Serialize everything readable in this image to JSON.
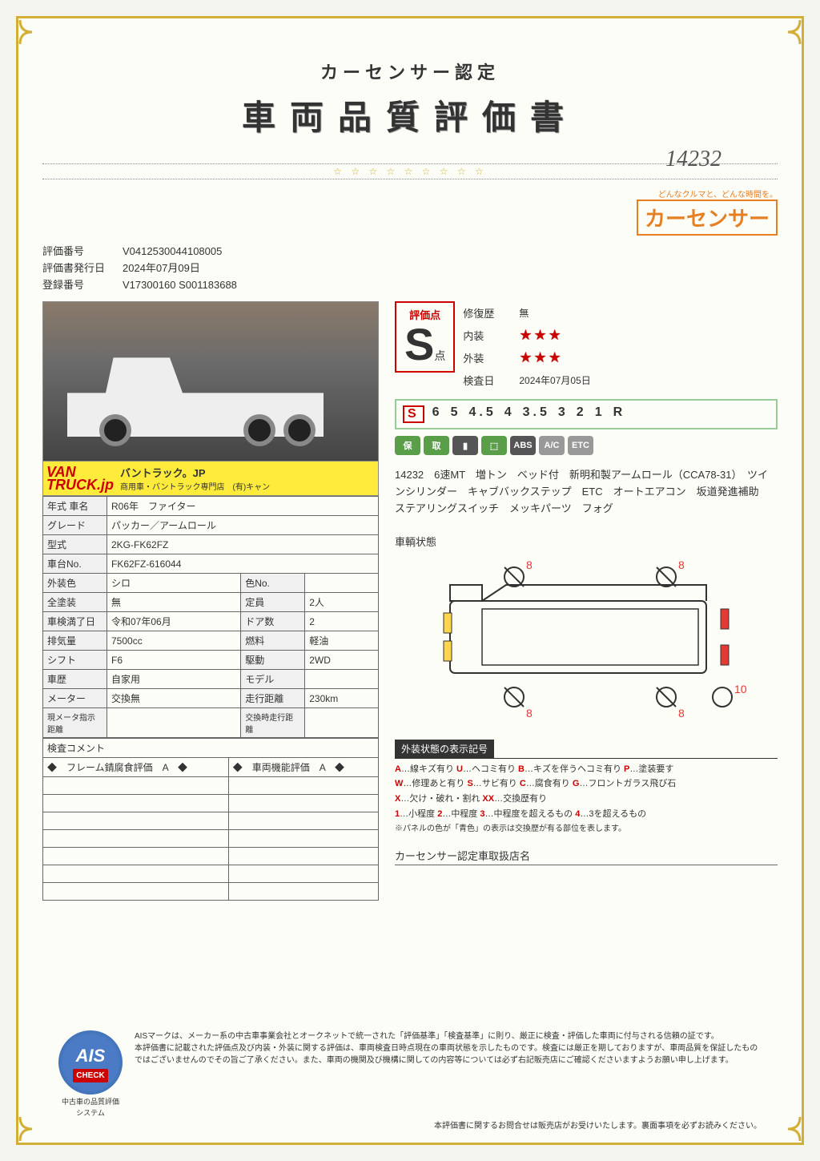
{
  "header": {
    "subtitle": "カーセンサー認定",
    "title": "車両品質評価書",
    "handwritten": "14232"
  },
  "brand": {
    "tagline": "どんなクルマと、どんな時間を。",
    "name": "カーセンサー"
  },
  "meta": {
    "eval_no_label": "評価番号",
    "eval_no": "V0412530044108005",
    "issue_date_label": "評価書発行日",
    "issue_date": "2024年07月09日",
    "reg_no_label": "登録番号",
    "reg_no": "V17300160 S001183688"
  },
  "banner": {
    "logo1": "VAN",
    "logo2": "TRUCK.jp",
    "text": "バントラック。JP",
    "sub": "商用車・バントラック専門店　(有)キャン"
  },
  "spec": {
    "year_label": "年式 車名",
    "year": "R06年　ファイター",
    "grade_label": "グレード",
    "grade": "パッカー／アームロール",
    "model_label": "型式",
    "model": "2KG-FK62FZ",
    "chassis_label": "車台No.",
    "chassis": "FK62FZ-616044",
    "ext_color_label": "外装色",
    "ext_color": "シロ",
    "color_no_label": "色No.",
    "color_no": "",
    "repaint_label": "全塗装",
    "repaint": "無",
    "capacity_label": "定員",
    "capacity": "2人",
    "shaken_label": "車検満了日",
    "shaken": "令和07年06月",
    "doors_label": "ドア数",
    "doors": "2",
    "disp_label": "排気量",
    "disp": "7500cc",
    "fuel_label": "燃料",
    "fuel": "軽油",
    "shift_label": "シフト",
    "shift": "F6",
    "drive_label": "駆動",
    "drive": "2WD",
    "history_label": "車歴",
    "history": "自家用",
    "modelyr_label": "モデル",
    "modelyr": "",
    "meter_label": "メーター",
    "meter": "交換無",
    "mileage_label": "走行距離",
    "mileage": "230km",
    "cur_meter_label": "現メータ指示距離",
    "cur_meter": "",
    "swap_meter_label": "交換時走行距離",
    "swap_meter": ""
  },
  "comment": {
    "title": "検査コメント",
    "frame": "◆　フレーム錆腐食評価　A　◆",
    "func": "◆　車両機能評価　A　◆"
  },
  "score": {
    "label": "評価点",
    "grade": "S",
    "unit": "点",
    "repair_label": "修復歴",
    "repair": "無",
    "interior_label": "内装",
    "interior_stars": "★★★",
    "exterior_label": "外装",
    "exterior_stars": "★★★",
    "inspect_label": "検査日",
    "inspect_date": "2024年07月05日"
  },
  "scale": [
    "S",
    "6",
    "5",
    "4.5",
    "4",
    "3.5",
    "3",
    "2",
    "1",
    "R"
  ],
  "scale_selected": "S",
  "badges": [
    "保",
    "取",
    "▮",
    "⬚",
    "ABS",
    "A/C",
    "ETC"
  ],
  "notes": "14232　6速MT　増トン　ベッド付　新明和製アームロール（CCA78-31）　ツインシリンダー　キャブバックステップ　ETC　オートエアコン　坂道発進補助　ステアリングスイッチ　メッキパーツ　フォグ",
  "diagram": {
    "title": "車輌状態",
    "marks": {
      "tl": "8",
      "tr": "8",
      "bl": "8",
      "br": "8",
      "r": "10"
    },
    "colors": {
      "outline": "#333",
      "yellow": "#ffd54f",
      "red": "#e53935",
      "marktext": "#e53935"
    }
  },
  "legend": {
    "title": "外装状態の表示記号",
    "lines": [
      {
        "codes": [
          [
            "A",
            "…線キズ有り"
          ],
          [
            "U",
            "…ヘコミ有り"
          ],
          [
            "B",
            "…キズを伴うヘコミ有り"
          ],
          [
            "P",
            "…塗装要す"
          ]
        ]
      },
      {
        "codes": [
          [
            "W",
            "…修理あと有り"
          ],
          [
            "S",
            "…サビ有り"
          ],
          [
            "C",
            "…腐食有り"
          ],
          [
            "G",
            "…フロントガラス飛び石"
          ]
        ]
      },
      {
        "codes": [
          [
            "X",
            "…欠け・破れ・割れ"
          ],
          [
            "XX",
            "…交換歴有り"
          ]
        ]
      },
      {
        "codes": [
          [
            "1",
            "…小程度"
          ],
          [
            "2",
            "…中程度"
          ],
          [
            "3",
            "…中程度を超えるもの"
          ],
          [
            "4",
            "…3を超えるもの"
          ]
        ]
      }
    ],
    "note": "※パネルの色が「青色」の表示は交換歴が有る部位を表します。"
  },
  "dealer_title": "カーセンサー認定車取扱店名",
  "footer": {
    "ais": "AIS",
    "ais_check": "CHECK",
    "ais_sub": "中古車の品質評価システム",
    "text": "AISマークは、メーカー系の中古車事業会社とオークネットで統一された「評価基準」「検査基準」に則り、厳正に検査・評価した車両に付与される信頼の証です。\n本評価書に記載された評価点及び内装・外装に関する評価は、車両検査日時点現在の車両状態を示したものです。検査には厳正を期しておりますが、車両品質を保証したものではございませんのでその旨ご了承ください。また、車両の機関及び機構に関しての内容等については必ず右記販売店にご確認くださいますようお願い申し上げます。",
    "bottom": "本評価書に関するお問合せは販売店がお受けいたします。裏面事項を必ずお読みください。"
  }
}
